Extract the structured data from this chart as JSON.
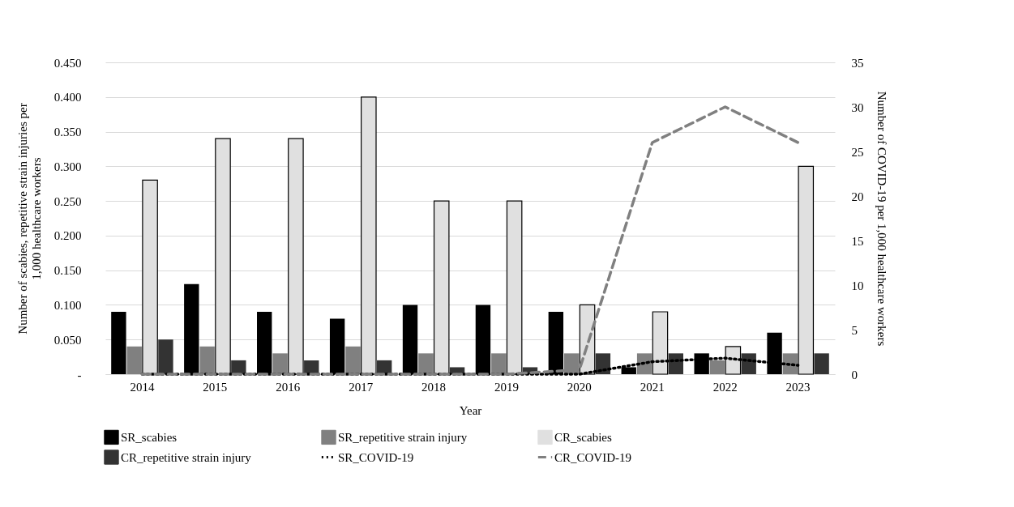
{
  "chart_data": {
    "type": "bar",
    "xlabel": "Year",
    "ylabel": "Number of scabies, repetitive strain injuries per 1,000 healthcare workers",
    "y2label": "Number of COVID-19 per 1,000 healthcare workers",
    "categories": [
      "2014",
      "2015",
      "2016",
      "2017",
      "2018",
      "2019",
      "2020",
      "2021",
      "2022",
      "2023"
    ],
    "series": [
      {
        "name": "SR_scabies",
        "color": "#000000",
        "values": [
          0.09,
          0.13,
          0.09,
          0.08,
          0.1,
          0.1,
          0.09,
          0.01,
          0.03,
          0.06
        ]
      },
      {
        "name": "SR_repetitive strain injury",
        "color": "#808080",
        "values": [
          0.04,
          0.04,
          0.03,
          0.04,
          0.03,
          0.03,
          0.03,
          0.03,
          0.02,
          0.03
        ]
      },
      {
        "name": "CR_scabies",
        "color": "#e0e0e0",
        "values": [
          0.28,
          0.34,
          0.34,
          0.4,
          0.25,
          0.25,
          0.1,
          0.09,
          0.04,
          0.3
        ]
      },
      {
        "name": "CR_repetitive strain injury",
        "color": "#333333",
        "values": [
          0.05,
          0.02,
          0.02,
          0.02,
          0.01,
          0.01,
          0.03,
          0.03,
          0.03,
          0.03
        ]
      },
      {
        "name": "SR_COVID-19",
        "type": "line",
        "axis": "y2",
        "color": "#000000",
        "line_style": "dotted",
        "values": [
          0,
          0,
          0,
          0,
          0,
          0,
          0,
          1.4,
          1.8,
          1
        ]
      },
      {
        "name": "CR_COVID-19",
        "type": "line",
        "axis": "y2",
        "color": "#808080",
        "line_style": "dashed",
        "values": [
          0,
          0,
          0,
          0,
          0,
          0,
          0.5,
          26,
          30,
          26
        ]
      }
    ],
    "ylim": [
      0,
      0.45
    ],
    "yticks": [
      {
        "value": 0,
        "label": "-"
      },
      {
        "value": 0.05,
        "label": "0.050"
      },
      {
        "value": 0.1,
        "label": "0.100"
      },
      {
        "value": 0.15,
        "label": "0.150"
      },
      {
        "value": 0.2,
        "label": "0.200"
      },
      {
        "value": 0.25,
        "label": "0.250"
      },
      {
        "value": 0.3,
        "label": "0.300"
      },
      {
        "value": 0.35,
        "label": "0.350"
      },
      {
        "value": 0.4,
        "label": "0.400"
      },
      {
        "value": 0.45,
        "label": "0.450"
      }
    ],
    "y2lim": [
      0,
      35
    ],
    "y2ticks": [
      0,
      5,
      10,
      15,
      20,
      25,
      30,
      35
    ],
    "grid": "y",
    "legend": "bottom",
    "marker": "none"
  }
}
